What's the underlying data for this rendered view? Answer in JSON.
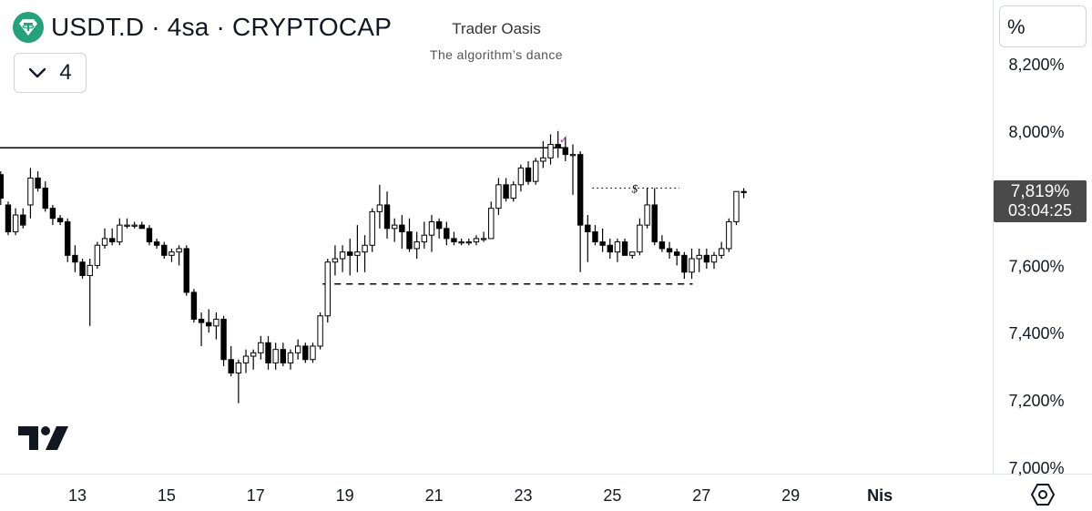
{
  "header": {
    "symbol_text": "USDT.D · 4sa · CRYPTOCAP",
    "logo_icon": "tether-icon",
    "collapse_count": "4"
  },
  "watermark": {
    "title": "Trader Oasis",
    "subtitle": "The algorithm’s dance"
  },
  "scale": {
    "mode_label": "%"
  },
  "last_price": {
    "value": "7,819%",
    "countdown": "03:04:25"
  },
  "colors": {
    "up_body": "#ffffff",
    "down_body": "#000000",
    "wick": "#000000",
    "label_bg": "#4a4a4a",
    "check_mark": "#b040c0"
  },
  "drawings": {
    "resistance_level": 7.95,
    "support_level": 7.545,
    "range_top": 7.83,
    "range_marker": "$",
    "check_mark": "✓"
  },
  "chart_data": {
    "type": "candlestick",
    "title": "",
    "ylabel": "",
    "y_scale": "percent",
    "ylim": [
      7.0,
      8.28
    ],
    "y_ticks": [
      "8,200%",
      "8,000%",
      "7,800%",
      "7,600%",
      "7,400%",
      "7,200%",
      "7,000%"
    ],
    "y_tick_values": [
      8.2,
      8.0,
      7.8,
      7.6,
      7.4,
      7.2,
      7.0
    ],
    "x_ticks": [
      "13",
      "15",
      "17",
      "19",
      "21",
      "23",
      "25",
      "27",
      "29",
      "Nis"
    ],
    "x_tick_days": [
      13,
      15,
      17,
      19,
      21,
      23,
      25,
      27,
      29,
      31
    ],
    "x_range_days": [
      11.25,
      33.5
    ],
    "candle_interval": "4h",
    "first_candle_day": 11.28,
    "candles_ohlc": [
      [
        7.87,
        7.88,
        7.78,
        7.8
      ],
      [
        7.78,
        7.79,
        7.69,
        7.7
      ],
      [
        7.7,
        7.77,
        7.69,
        7.75
      ],
      [
        7.75,
        7.77,
        7.71,
        7.72
      ],
      [
        7.78,
        7.89,
        7.74,
        7.86
      ],
      [
        7.86,
        7.88,
        7.82,
        7.83
      ],
      [
        7.83,
        7.85,
        7.76,
        7.77
      ],
      [
        7.77,
        7.78,
        7.72,
        7.74
      ],
      [
        7.74,
        7.75,
        7.72,
        7.73
      ],
      [
        7.73,
        7.74,
        7.61,
        7.63
      ],
      [
        7.63,
        7.66,
        7.58,
        7.61
      ],
      [
        7.61,
        7.62,
        7.56,
        7.57
      ],
      [
        7.57,
        7.62,
        7.42,
        7.6
      ],
      [
        7.6,
        7.67,
        7.59,
        7.66
      ],
      [
        7.66,
        7.71,
        7.65,
        7.68
      ],
      [
        7.68,
        7.71,
        7.66,
        7.67
      ],
      [
        7.67,
        7.74,
        7.66,
        7.72
      ],
      [
        7.72,
        7.74,
        7.71,
        7.72
      ],
      [
        7.72,
        7.73,
        7.71,
        7.72
      ],
      [
        7.72,
        7.73,
        7.71,
        7.71
      ],
      [
        7.71,
        7.72,
        7.66,
        7.67
      ],
      [
        7.67,
        7.68,
        7.65,
        7.66
      ],
      [
        7.66,
        7.67,
        7.62,
        7.63
      ],
      [
        7.63,
        7.65,
        7.61,
        7.64
      ],
      [
        7.64,
        7.66,
        7.6,
        7.65
      ],
      [
        7.65,
        7.66,
        7.51,
        7.52
      ],
      [
        7.52,
        7.53,
        7.43,
        7.44
      ],
      [
        7.44,
        7.46,
        7.36,
        7.43
      ],
      [
        7.43,
        7.47,
        7.4,
        7.42
      ],
      [
        7.42,
        7.46,
        7.38,
        7.44
      ],
      [
        7.44,
        7.45,
        7.3,
        7.32
      ],
      [
        7.32,
        7.36,
        7.27,
        7.28
      ],
      [
        7.28,
        7.32,
        7.19,
        7.31
      ],
      [
        7.31,
        7.35,
        7.28,
        7.33
      ],
      [
        7.33,
        7.35,
        7.29,
        7.34
      ],
      [
        7.34,
        7.39,
        7.32,
        7.37
      ],
      [
        7.37,
        7.39,
        7.29,
        7.31
      ],
      [
        7.31,
        7.37,
        7.29,
        7.35
      ],
      [
        7.35,
        7.37,
        7.3,
        7.31
      ],
      [
        7.31,
        7.35,
        7.29,
        7.34
      ],
      [
        7.34,
        7.38,
        7.32,
        7.36
      ],
      [
        7.36,
        7.37,
        7.31,
        7.32
      ],
      [
        7.32,
        7.37,
        7.31,
        7.36
      ],
      [
        7.36,
        7.46,
        7.35,
        7.45
      ],
      [
        7.45,
        7.62,
        7.43,
        7.61
      ],
      [
        7.61,
        7.66,
        7.57,
        7.62
      ],
      [
        7.62,
        7.66,
        7.58,
        7.64
      ],
      [
        7.64,
        7.68,
        7.57,
        7.63
      ],
      [
        7.63,
        7.72,
        7.58,
        7.64
      ],
      [
        7.64,
        7.69,
        7.58,
        7.66
      ],
      [
        7.66,
        7.77,
        7.64,
        7.76
      ],
      [
        7.76,
        7.84,
        7.71,
        7.78
      ],
      [
        7.78,
        7.82,
        7.68,
        7.71
      ],
      [
        7.71,
        7.74,
        7.67,
        7.72
      ],
      [
        7.72,
        7.75,
        7.65,
        7.7
      ],
      [
        7.7,
        7.74,
        7.64,
        7.65
      ],
      [
        7.65,
        7.7,
        7.62,
        7.67
      ],
      [
        7.67,
        7.73,
        7.65,
        7.69
      ],
      [
        7.69,
        7.75,
        7.64,
        7.73
      ],
      [
        7.73,
        7.74,
        7.68,
        7.71
      ],
      [
        7.71,
        7.73,
        7.66,
        7.68
      ],
      [
        7.68,
        7.7,
        7.66,
        7.67
      ],
      [
        7.67,
        7.68,
        7.66,
        7.67
      ],
      [
        7.67,
        7.68,
        7.66,
        7.67
      ],
      [
        7.67,
        7.69,
        7.66,
        7.68
      ],
      [
        7.68,
        7.7,
        7.67,
        7.68
      ],
      [
        7.68,
        7.79,
        7.68,
        7.77
      ],
      [
        7.77,
        7.86,
        7.75,
        7.84
      ],
      [
        7.84,
        7.86,
        7.79,
        7.8
      ],
      [
        7.8,
        7.85,
        7.79,
        7.84
      ],
      [
        7.84,
        7.9,
        7.82,
        7.89
      ],
      [
        7.89,
        7.91,
        7.84,
        7.85
      ],
      [
        7.85,
        7.92,
        7.84,
        7.91
      ],
      [
        7.91,
        7.97,
        7.89,
        7.92
      ],
      [
        7.92,
        7.99,
        7.9,
        7.96
      ],
      [
        7.96,
        8.0,
        7.92,
        7.95
      ],
      [
        7.95,
        7.98,
        7.91,
        7.93
      ],
      [
        7.93,
        7.96,
        7.81,
        7.93
      ],
      [
        7.93,
        7.94,
        7.58,
        7.72
      ],
      [
        7.72,
        7.75,
        7.61,
        7.7
      ],
      [
        7.7,
        7.72,
        7.66,
        7.67
      ],
      [
        7.67,
        7.71,
        7.64,
        7.66
      ],
      [
        7.66,
        7.68,
        7.62,
        7.64
      ],
      [
        7.64,
        7.68,
        7.61,
        7.67
      ],
      [
        7.67,
        7.68,
        7.63,
        7.63
      ],
      [
        7.63,
        7.64,
        7.62,
        7.64
      ],
      [
        7.64,
        7.74,
        7.63,
        7.72
      ],
      [
        7.72,
        7.83,
        7.71,
        7.78
      ],
      [
        7.78,
        7.83,
        7.66,
        7.67
      ],
      [
        7.67,
        7.69,
        7.64,
        7.65
      ],
      [
        7.65,
        7.67,
        7.62,
        7.64
      ],
      [
        7.64,
        7.65,
        7.6,
        7.63
      ],
      [
        7.63,
        7.64,
        7.56,
        7.58
      ],
      [
        7.58,
        7.65,
        7.56,
        7.62
      ],
      [
        7.62,
        7.65,
        7.58,
        7.63
      ],
      [
        7.63,
        7.65,
        7.59,
        7.61
      ],
      [
        7.61,
        7.64,
        7.59,
        7.63
      ],
      [
        7.63,
        7.67,
        7.62,
        7.65
      ],
      [
        7.65,
        7.74,
        7.64,
        7.73
      ],
      [
        7.73,
        7.82,
        7.72,
        7.82
      ],
      [
        7.82,
        7.83,
        7.8,
        7.819
      ]
    ]
  }
}
